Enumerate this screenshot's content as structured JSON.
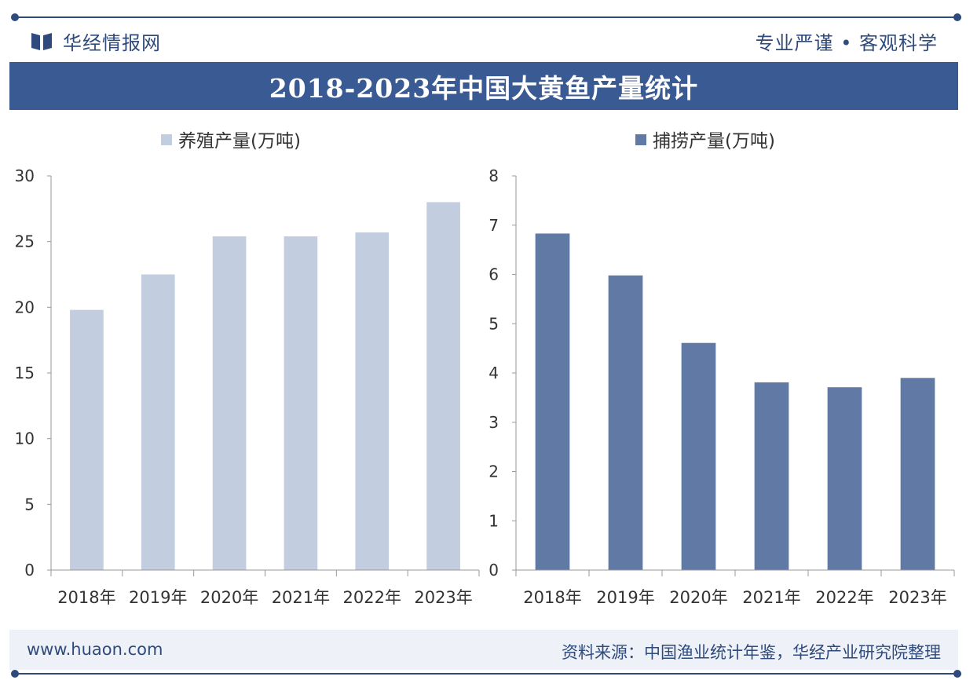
{
  "header": {
    "brand": "华经情报网",
    "slogan": "专业严谨 • 客观科学"
  },
  "title": "2018-2023年中国大黄鱼产量统计",
  "footer": {
    "url": "www.huaon.com",
    "source": "资料来源：中国渔业统计年鉴，华经产业研究院整理"
  },
  "colors": {
    "brand": "#2f4a7c",
    "title_bg": "#3a5a94",
    "farmed": "#c2cde0",
    "wild": "#617aa5"
  },
  "chart_data": [
    {
      "type": "bar",
      "legend": "养殖产量(万吨)",
      "categories": [
        "2018年",
        "2019年",
        "2020年",
        "2021年",
        "2022年",
        "2023年"
      ],
      "values": [
        19.8,
        22.5,
        25.4,
        25.4,
        25.7,
        28.0
      ],
      "ylim": [
        0,
        30
      ],
      "yticks": [
        0,
        5,
        10,
        15,
        20,
        25,
        30
      ],
      "color": "#c2cde0"
    },
    {
      "type": "bar",
      "legend": "捕捞产量(万吨)",
      "categories": [
        "2018年",
        "2019年",
        "2020年",
        "2021年",
        "2022年",
        "2023年"
      ],
      "values": [
        6.83,
        5.98,
        4.61,
        3.81,
        3.71,
        3.9
      ],
      "ylim": [
        0,
        8
      ],
      "yticks": [
        0,
        1,
        2,
        3,
        4,
        5,
        6,
        7,
        8
      ],
      "color": "#617aa5"
    }
  ]
}
